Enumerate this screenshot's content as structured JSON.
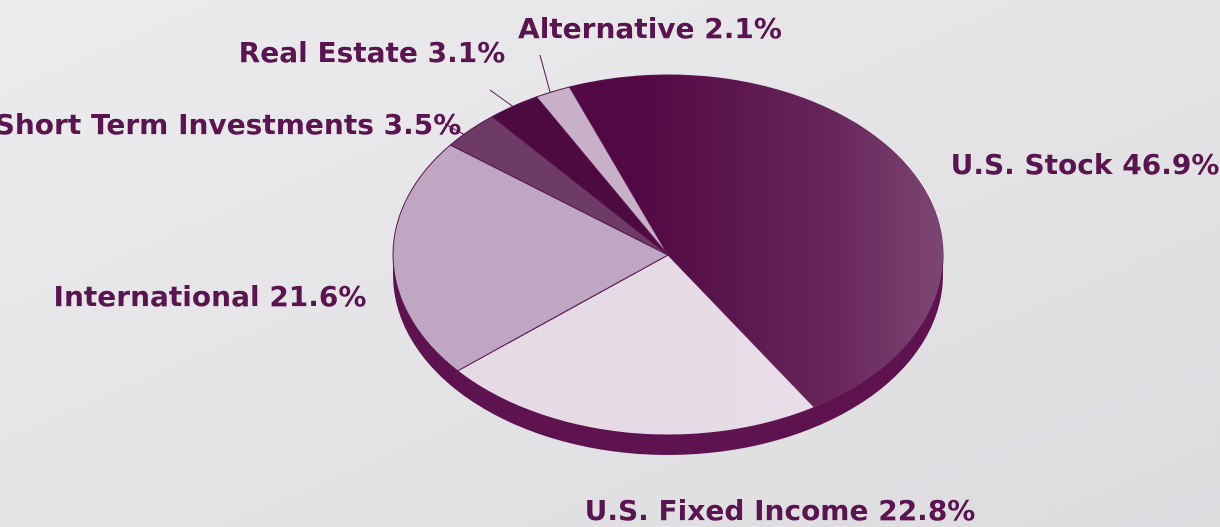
{
  "chart_data": {
    "type": "pie",
    "categories": [
      "U.S. Stock",
      "U.S. Fixed Income",
      "International",
      "Short Term Investments",
      "Real Estate",
      "Alternative"
    ],
    "values": [
      46.9,
      22.8,
      21.6,
      3.5,
      3.1,
      2.1
    ],
    "value_labels": [
      "46.9%",
      "22.8%",
      "21.6%",
      "3.5%",
      "3.1%",
      "2.1%"
    ],
    "colors": [
      "#520844",
      "#e6dae4",
      "#bfa6c2",
      "#6e3a66",
      "#4c0a40",
      "#c8b0c8"
    ]
  }
}
